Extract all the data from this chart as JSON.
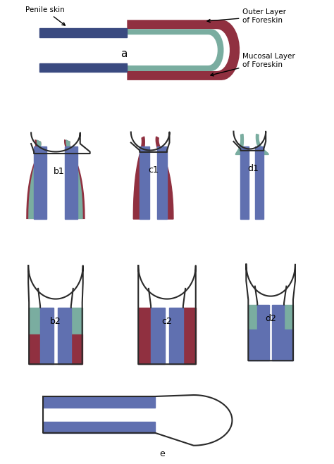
{
  "bg_color": "#ffffff",
  "outline_color": "#2a2a2a",
  "blue_color": "#6070b0",
  "dark_blue": "#3a4a80",
  "red_color": "#903040",
  "teal_color": "#7aada0",
  "label_a": "a",
  "label_b1": "b1",
  "label_c1": "c1",
  "label_d1": "d1",
  "label_b2": "b2",
  "label_c2": "c2",
  "label_d2": "d2",
  "label_e": "e",
  "text_penile": "Penile skin",
  "text_outer": "Outer Layer\nof Foreskin",
  "text_mucosal": "Mucosal Layer\nof Foreskin"
}
